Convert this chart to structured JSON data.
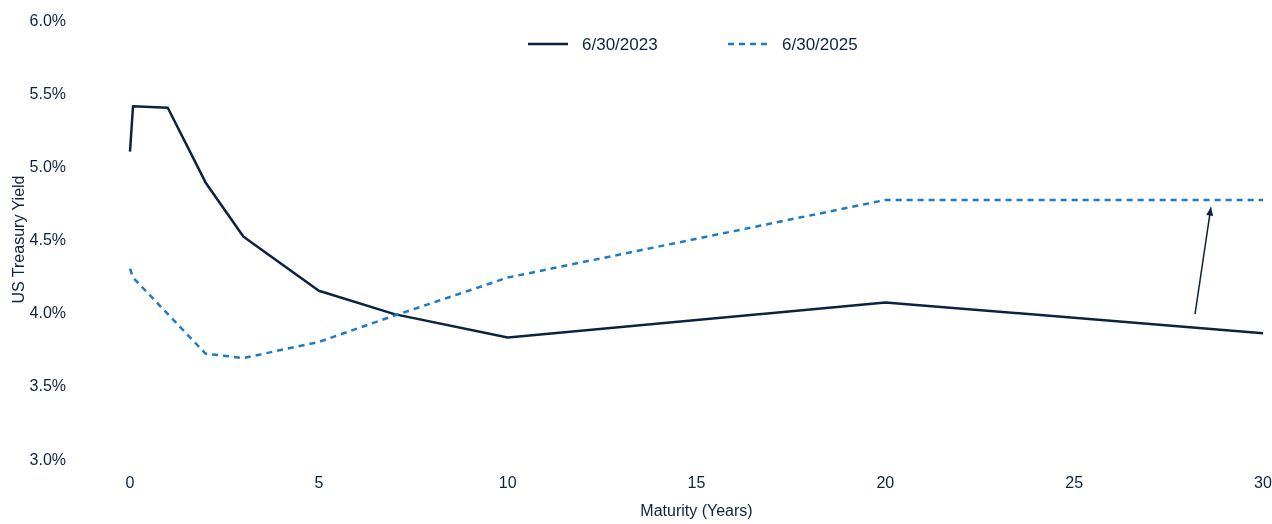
{
  "chart_data": {
    "type": "line",
    "xlabel": "Maturity (Years)",
    "ylabel": "US Treasury Yield",
    "xlim": [
      0,
      30
    ],
    "xticks": [
      0,
      5,
      10,
      15,
      20,
      25,
      30
    ],
    "ylim": [
      3.0,
      6.0
    ],
    "yticks": [
      {
        "value": 3.0,
        "label": "3.0%"
      },
      {
        "value": 3.5,
        "label": "3.5%"
      },
      {
        "value": 4.0,
        "label": "4.0%"
      },
      {
        "value": 4.5,
        "label": "4.5%"
      },
      {
        "value": 5.0,
        "label": "5.0%"
      },
      {
        "value": 5.5,
        "label": "5.5%"
      },
      {
        "value": 6.0,
        "label": "6.0%"
      }
    ],
    "grid": false,
    "legend": "top",
    "marker": "none",
    "series": [
      {
        "name": "6/30/2023",
        "color": "#0b2341",
        "line_style": "solid",
        "x": [
          0,
          0.08,
          1,
          2,
          3,
          5,
          7,
          10,
          20,
          30
        ],
        "values": [
          5.1,
          5.41,
          5.4,
          4.89,
          4.52,
          4.15,
          3.99,
          3.83,
          4.07,
          3.86
        ]
      },
      {
        "name": "6/30/2025",
        "color": "#1f7ac4",
        "line_style": "dashed",
        "x": [
          0,
          0.08,
          2,
          3,
          5,
          7,
          10,
          20,
          30
        ],
        "values": [
          4.3,
          4.24,
          3.72,
          3.69,
          3.8,
          3.98,
          4.24,
          4.77,
          4.77
        ]
      }
    ]
  }
}
